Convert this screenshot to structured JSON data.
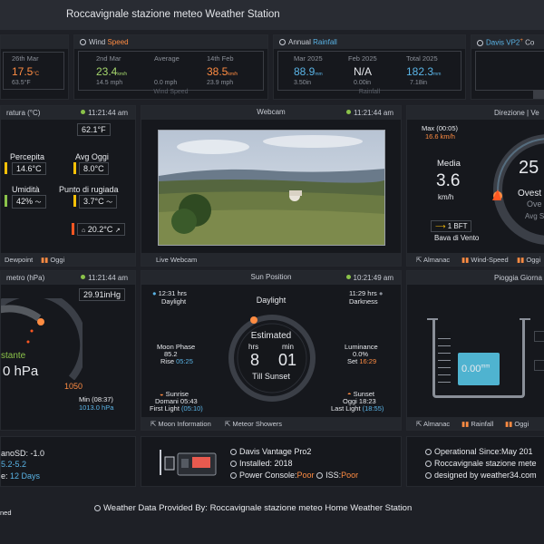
{
  "header": {
    "title": "Roccavignale stazione meteo Weather Station"
  },
  "top_row": {
    "temp_panel": {
      "col_date": "26th Mar",
      "value": "17.5",
      "unit": "°C",
      "sub": "63.5°F"
    },
    "wind_panel": {
      "title": "Wind",
      "title_accent": "Speed",
      "col1_date": "2nd Mar",
      "col1_value": "23.4",
      "col1_unit": "km/h",
      "col1_sub": "14.5 mph",
      "col2_label": "Average",
      "col2_sub": "0.0 mph",
      "col3_date": "14th Feb",
      "col3_value": "38.5",
      "col3_unit": "km/h",
      "col3_sub": "23.9 mph",
      "footer": "Wind Speed"
    },
    "rain_panel": {
      "title": "Annual",
      "title_accent": "Rainfall",
      "col1_date": "Mar 2025",
      "col1_value": "88.9",
      "col1_unit": "mm",
      "col1_sub": "3.50in",
      "col2_date": "Feb 2025",
      "col2_value": "N/A",
      "col2_sub": "0.00in",
      "col3_date": "Total 2025",
      "col3_value": "182.3",
      "col3_unit": "mm",
      "col3_sub": "7.18in",
      "footer": "Rainfall"
    },
    "davis_panel": {
      "title": "Davis VP2",
      "sup": "+",
      "suffix": "Co"
    }
  },
  "temperature": {
    "title": "ratura (°C)",
    "time": "11:21:44 am",
    "top_box": "62.1°F",
    "perceived_label": "Percepita",
    "perceived_value": "14.6°C",
    "avg_label": "Avg Oggi",
    "avg_value": "8.0°C",
    "humidity_label": "Umidità",
    "humidity_value": "42%",
    "dew_label": "Punto di rugiada",
    "dew_value": "3.7°C",
    "indoor_value": "20.2°C",
    "footer_dew": "Dewpoint",
    "footer_today": "Oggi"
  },
  "webcam": {
    "title": "Webcam",
    "time": "11:21:44 am",
    "footer": "Live Webcam"
  },
  "wind": {
    "title": "Direzione | Ve",
    "max_label": "Max (00:05)",
    "max_value": "16.6 km/h",
    "media_label": "Media",
    "media_value": "3.6",
    "media_unit": "km/h",
    "bft": "1 BFT",
    "bft_desc": "Bava di Vento",
    "dir_value": "25",
    "dir_name": "Ovest S",
    "dir_sub": "Ove",
    "dir_avg": "Avg S",
    "footer_almanac": "Almanac",
    "footer_speed": "Wind-Speed",
    "footer_oggi": "Oggi"
  },
  "barometer": {
    "title": "metro (hPa)",
    "time": "11:21:44 am",
    "box": "29.91inHg",
    "trend": "stante",
    "value": "0 hPa",
    "scale_max": "1050",
    "min_label": "Min (08:37)",
    "min_value": "1013.0 hPa"
  },
  "sun": {
    "title": "Sun Position",
    "time": "10:21:49 am",
    "daylight_hrs": "12:31 hrs",
    "daylight_label": "Daylight",
    "darkness_hrs": "11:29 hrs",
    "darkness_label": "Darkness",
    "center_label": "Daylight",
    "estimated": "Estimated",
    "hrs_label": "hrs",
    "min_label": "min",
    "hrs_value": "8",
    "min_value": "01",
    "till": "Till Sunset",
    "moon_phase_label": "Moon Phase",
    "moon_phase_value": "85.2",
    "rise_label": "Rise",
    "rise_value": "05:25",
    "lum_label": "Luminance",
    "lum_value": "0.0%",
    "set_label": "Set",
    "set_value": "16:29",
    "sunrise_label": "Sunrise",
    "sunrise_tomorrow": "Domani 05:43",
    "first_light": "First Light",
    "first_light_value": "(05:10)",
    "sunset_label": "Sunset",
    "sunset_today": "Oggi 18:23",
    "last_light": "Last Light",
    "last_light_value": "(18:55)",
    "footer_moon": "Moon Information",
    "footer_meteor": "Meteor Showers"
  },
  "rain": {
    "title": "Pioggia Giorna",
    "value": "0.00",
    "unit": "mm",
    "footer_almanac": "Almanac",
    "footer_rainfall": "Rainfall",
    "footer_oggi": "Oggi"
  },
  "bottom": {
    "left_line1": "anoSD: -1.0",
    "left_line2": "5.2-5.2",
    "left_line3_prefix": "e:",
    "left_line3_value": "12 Days",
    "left_line4": "ned",
    "station_model": "Davis Vantage Pro2",
    "installed": "Installed: 2018",
    "power_label": "Power Console:",
    "power_value": "Poor",
    "iss_label": "ISS:",
    "iss_value": "Poor",
    "operational": "Operational Since:May 201",
    "right_line2": "Roccavignale stazione mete",
    "right_line3": "designed by weather34.com"
  },
  "footer": {
    "text": "Weather Data Provided By: Roccavignale stazione meteo Home Weather Station"
  },
  "colors": {
    "accent_orange": "#ff8c42",
    "accent_blue": "#5ab4e6",
    "green": "#8bc34a",
    "yellow": "#ffc107"
  }
}
